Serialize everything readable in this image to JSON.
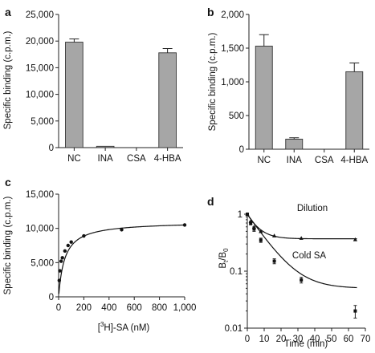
{
  "chart_data": [
    {
      "id": "a",
      "panel_label": "a",
      "type": "bar",
      "ylabel": "Specific binding (c.p.m.)",
      "ylim": [
        0,
        25000
      ],
      "yticks": [
        0,
        5000,
        10000,
        15000,
        20000,
        25000
      ],
      "ytick_labels": [
        "0",
        "5,000",
        "10,000",
        "15,000",
        "20,000",
        "25,000"
      ],
      "categories": [
        "NC",
        "INA",
        "CSA",
        "4-HBA"
      ],
      "values": [
        19800,
        250,
        0,
        17800
      ],
      "errors": [
        600,
        0,
        0,
        800
      ]
    },
    {
      "id": "b",
      "panel_label": "b",
      "type": "bar",
      "ylabel": "Specific binding (c.p.m.)",
      "ylim": [
        0,
        2000
      ],
      "yticks": [
        0,
        500,
        1000,
        1500,
        2000
      ],
      "ytick_labels": [
        "0",
        "500",
        "1,000",
        "1,500",
        "2,000"
      ],
      "categories": [
        "NC",
        "INA",
        "CSA",
        "4-HBA"
      ],
      "values": [
        1530,
        150,
        0,
        1150
      ],
      "errors": [
        170,
        20,
        0,
        130
      ]
    },
    {
      "id": "c",
      "panel_label": "c",
      "type": "scatter",
      "ylabel": "Specific binding (c.p.m.)",
      "xlabel_prefix": "[",
      "xlabel_sup": "3",
      "xlabel_suffix": "H]-SA (nM)",
      "xlim": [
        0,
        1000
      ],
      "ylim": [
        0,
        15000
      ],
      "xticks": [
        0,
        200,
        400,
        600,
        800,
        1000
      ],
      "xtick_labels": [
        "0",
        "200",
        "400",
        "600",
        "800",
        "1,000"
      ],
      "yticks": [
        0,
        5000,
        10000,
        15000
      ],
      "ytick_labels": [
        "0",
        "5,000",
        "10,000",
        "15,000"
      ],
      "x": [
        5,
        10,
        20,
        30,
        50,
        75,
        100,
        200,
        500,
        1000
      ],
      "y": [
        2400,
        3800,
        5200,
        5700,
        6700,
        7500,
        8000,
        8900,
        9800,
        10500
      ],
      "fit_curve": {
        "type": "saturation",
        "bmax": 11000,
        "kd": 48
      }
    },
    {
      "id": "d",
      "panel_label": "d",
      "type": "scatter",
      "log_y": true,
      "xlabel": "Time (min)",
      "ylabel_main": "B",
      "ylabel_sub1": "t",
      "ylabel_sep": "/B",
      "ylabel_sub2": "0",
      "xlim": [
        0,
        70
      ],
      "ylim": [
        0.01,
        1
      ],
      "xticks": [
        0,
        10,
        20,
        30,
        40,
        50,
        60,
        70
      ],
      "xtick_labels": [
        "0",
        "10",
        "20",
        "30",
        "40",
        "50",
        "60",
        "70"
      ],
      "yticks": [
        0.01,
        0.1,
        1
      ],
      "ytick_labels": [
        "0.01",
        "0.1",
        "1"
      ],
      "series": [
        {
          "name": "Dilution",
          "marker": "triangle",
          "x": [
            0,
            2,
            4,
            8,
            16,
            32,
            64
          ],
          "y": [
            1.0,
            0.75,
            0.6,
            0.5,
            0.42,
            0.38,
            0.36
          ],
          "fit_curve": {
            "plateau": 0.37,
            "k": 0.17
          }
        },
        {
          "name": "Cold SA",
          "marker": "square",
          "x": [
            0,
            2,
            4,
            8,
            16,
            32,
            64
          ],
          "y": [
            1.0,
            0.7,
            0.55,
            0.35,
            0.15,
            0.07,
            0.02
          ],
          "errors_up": [
            0,
            0.05,
            0.05,
            0.03,
            0.015,
            0.008,
            0.005
          ],
          "fit_curve": {
            "plateau": 0.05,
            "k": 0.1
          }
        }
      ]
    }
  ]
}
